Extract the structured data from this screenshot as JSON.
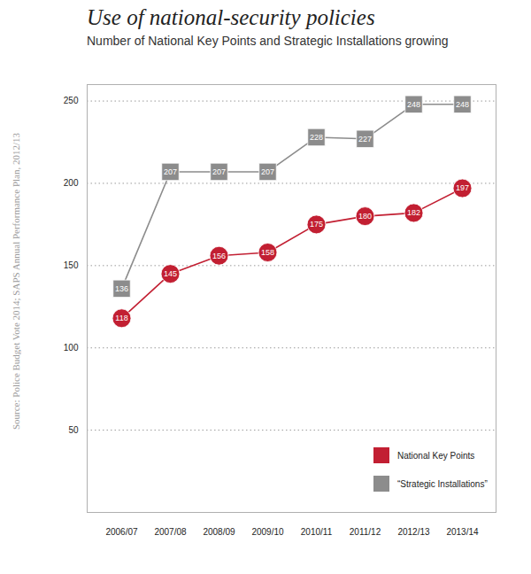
{
  "chart_data": {
    "type": "line",
    "title": "Use of national-security policies",
    "subtitle": "Number of National Key Points and Strategic Installations growing",
    "source": "Source: Police Budget Vote 2014; SAPS Annual Performance Plan, 2012/13",
    "categories": [
      "2006/07",
      "2007/08",
      "2008/09",
      "2009/10",
      "2010/11",
      "2011/12",
      "2012/13",
      "2013/14"
    ],
    "series": [
      {
        "name": "“Strategic Installations”",
        "color": "#8c8c8c",
        "marker": "square",
        "values": [
          136,
          207,
          207,
          207,
          228,
          227,
          248,
          248
        ]
      },
      {
        "name": "National Key Points",
        "color": "#c21f32",
        "marker": "circle",
        "values": [
          118,
          145,
          156,
          158,
          175,
          180,
          182,
          197
        ]
      }
    ],
    "ylim": [
      0,
      260
    ],
    "yticks": [
      50,
      100,
      150,
      200,
      250
    ],
    "grid": true,
    "data_labels": true,
    "legend": "bottom-right"
  }
}
